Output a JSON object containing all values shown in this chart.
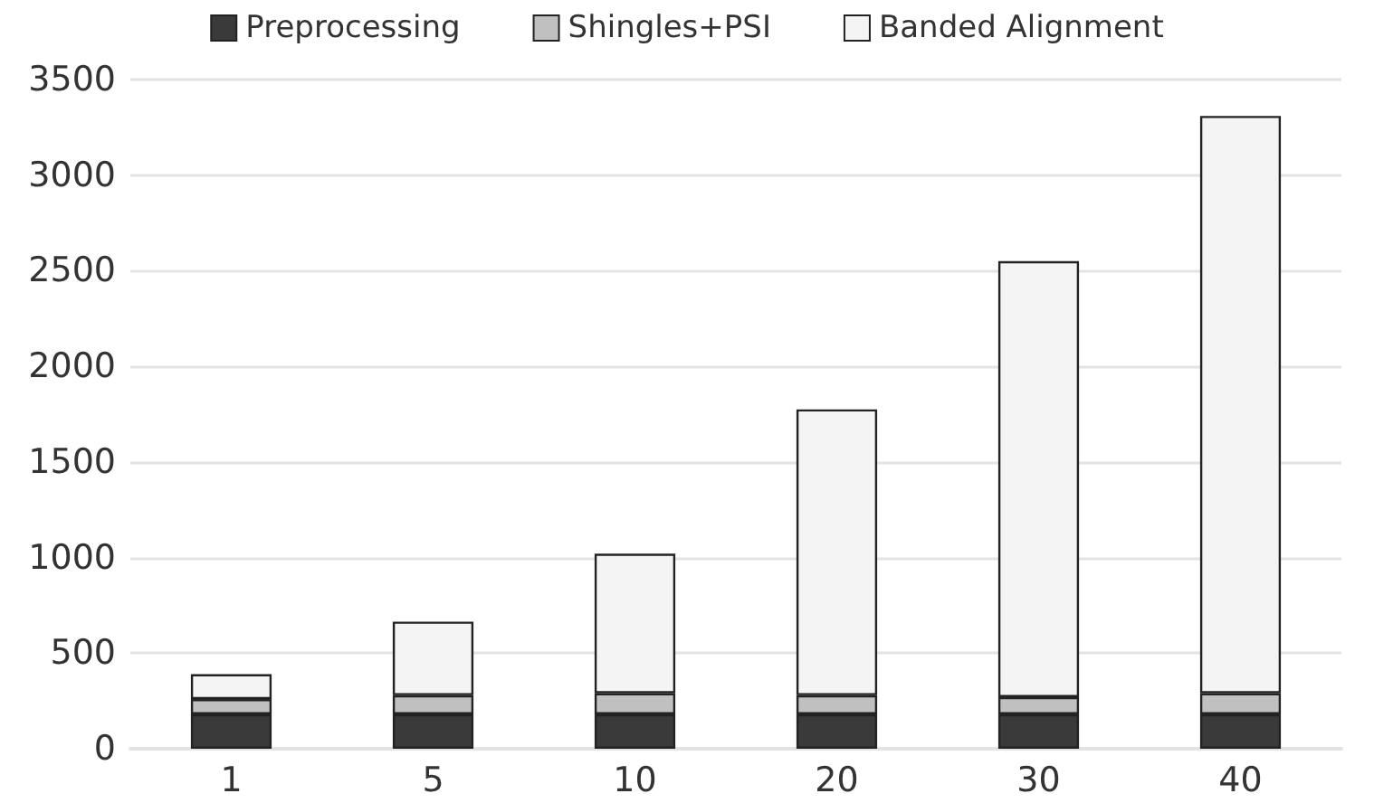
{
  "chart_data": {
    "type": "bar",
    "stacked": true,
    "categories": [
      "1",
      "5",
      "10",
      "20",
      "30",
      "40"
    ],
    "series": [
      {
        "name": "Preprocessing",
        "color": "#3a3a3a",
        "values": [
          180,
          180,
          180,
          180,
          180,
          180
        ]
      },
      {
        "name": "Shingles+PSI",
        "color": "#c0c0c0",
        "values": [
          80,
          100,
          110,
          100,
          90,
          110
        ]
      },
      {
        "name": "Banded Alignment",
        "color": "#f4f4f4",
        "values": [
          130,
          385,
          730,
          1495,
          2280,
          3020
        ]
      }
    ],
    "ylim": [
      0,
      3500
    ],
    "yticks": [
      0,
      500,
      1000,
      1500,
      2000,
      2500,
      3000,
      3500
    ],
    "grid": "y",
    "legend": "top"
  }
}
